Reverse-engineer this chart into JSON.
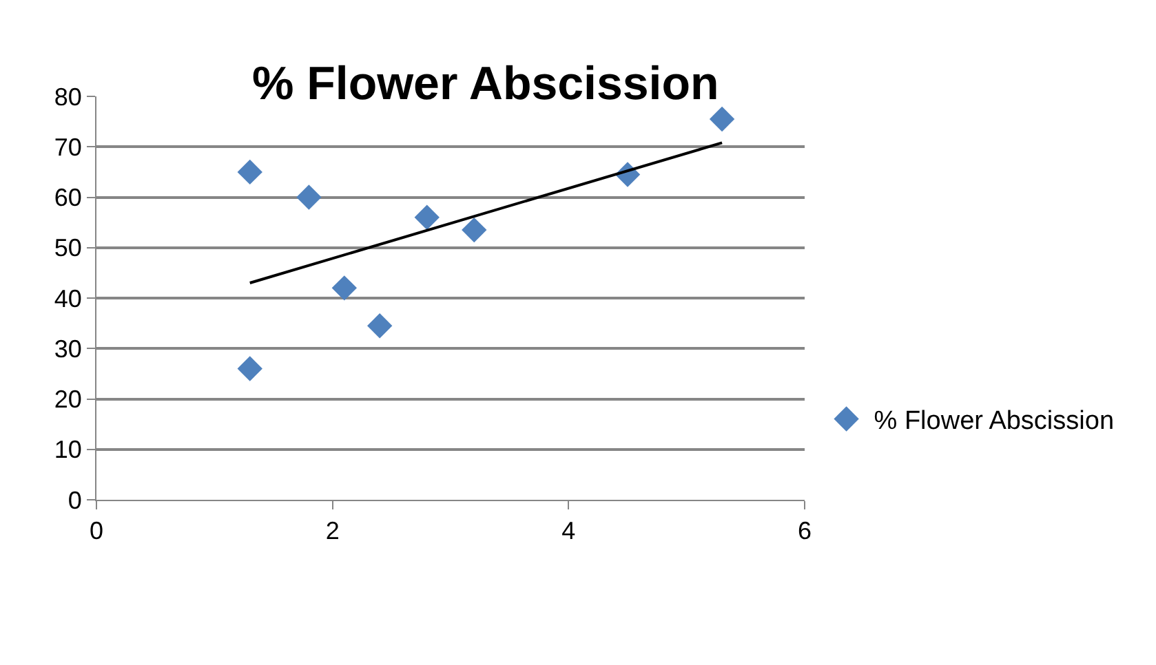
{
  "chart_data": {
    "type": "scatter",
    "title": "% Flower Abscission",
    "series": [
      {
        "name": "% Flower Abscission",
        "color": "#4f81bd",
        "x": [
          1.3,
          1.3,
          1.8,
          2.1,
          2.4,
          2.8,
          3.2,
          4.5,
          5.3
        ],
        "values": [
          65,
          26,
          60,
          42,
          34.5,
          56,
          53.5,
          64.5,
          75.5
        ],
        "marker": "diamond"
      },
      {
        "type": "line",
        "color": "#000000",
        "x": [
          1.3,
          5.3
        ],
        "values": [
          43,
          70.8
        ],
        "marker": "none",
        "line_style": "solid"
      }
    ],
    "xlim": [
      0,
      6
    ],
    "xticks": [
      0,
      2,
      4,
      6
    ],
    "ylim": [
      0,
      80
    ],
    "yticks": [
      0,
      10,
      20,
      30,
      40,
      50,
      60,
      70,
      80
    ],
    "grid": "y",
    "legend": "right"
  }
}
